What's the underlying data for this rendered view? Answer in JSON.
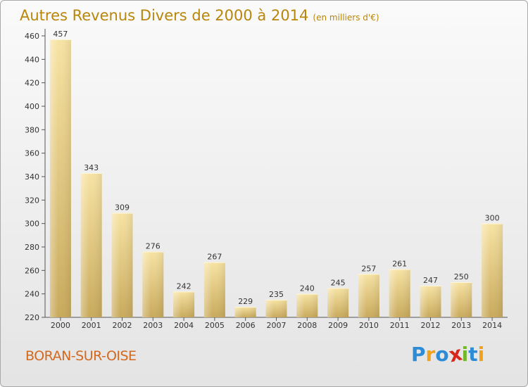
{
  "chart_data": {
    "type": "bar",
    "title": "Autres Revenus Divers de 2000 à 2014",
    "subtitle": "(en milliers d'€)",
    "categories": [
      "2000",
      "2001",
      "2002",
      "2003",
      "2004",
      "2005",
      "2006",
      "2007",
      "2008",
      "2009",
      "2010",
      "2011",
      "2012",
      "2013",
      "2014"
    ],
    "values": [
      457,
      343,
      309,
      276,
      242,
      267,
      229,
      235,
      240,
      245,
      257,
      261,
      247,
      250,
      300
    ],
    "ylim": [
      220,
      460
    ],
    "yticks": [
      220,
      240,
      260,
      280,
      300,
      320,
      340,
      360,
      380,
      400,
      420,
      440,
      460
    ],
    "xlabel": "",
    "ylabel": "",
    "grid": false,
    "bar_color": "#e8cf85"
  },
  "footer": {
    "town": "BORAN-SUR-OISE",
    "logo_letters": [
      "P",
      "r",
      "o",
      "x",
      "i",
      "t",
      "i"
    ],
    "logo_colors": [
      "#2e8bd6",
      "#f0a21d",
      "#2e8bd6",
      "#d9261c",
      "#74b72e",
      "#2e8bd6",
      "#f0a21d"
    ]
  }
}
